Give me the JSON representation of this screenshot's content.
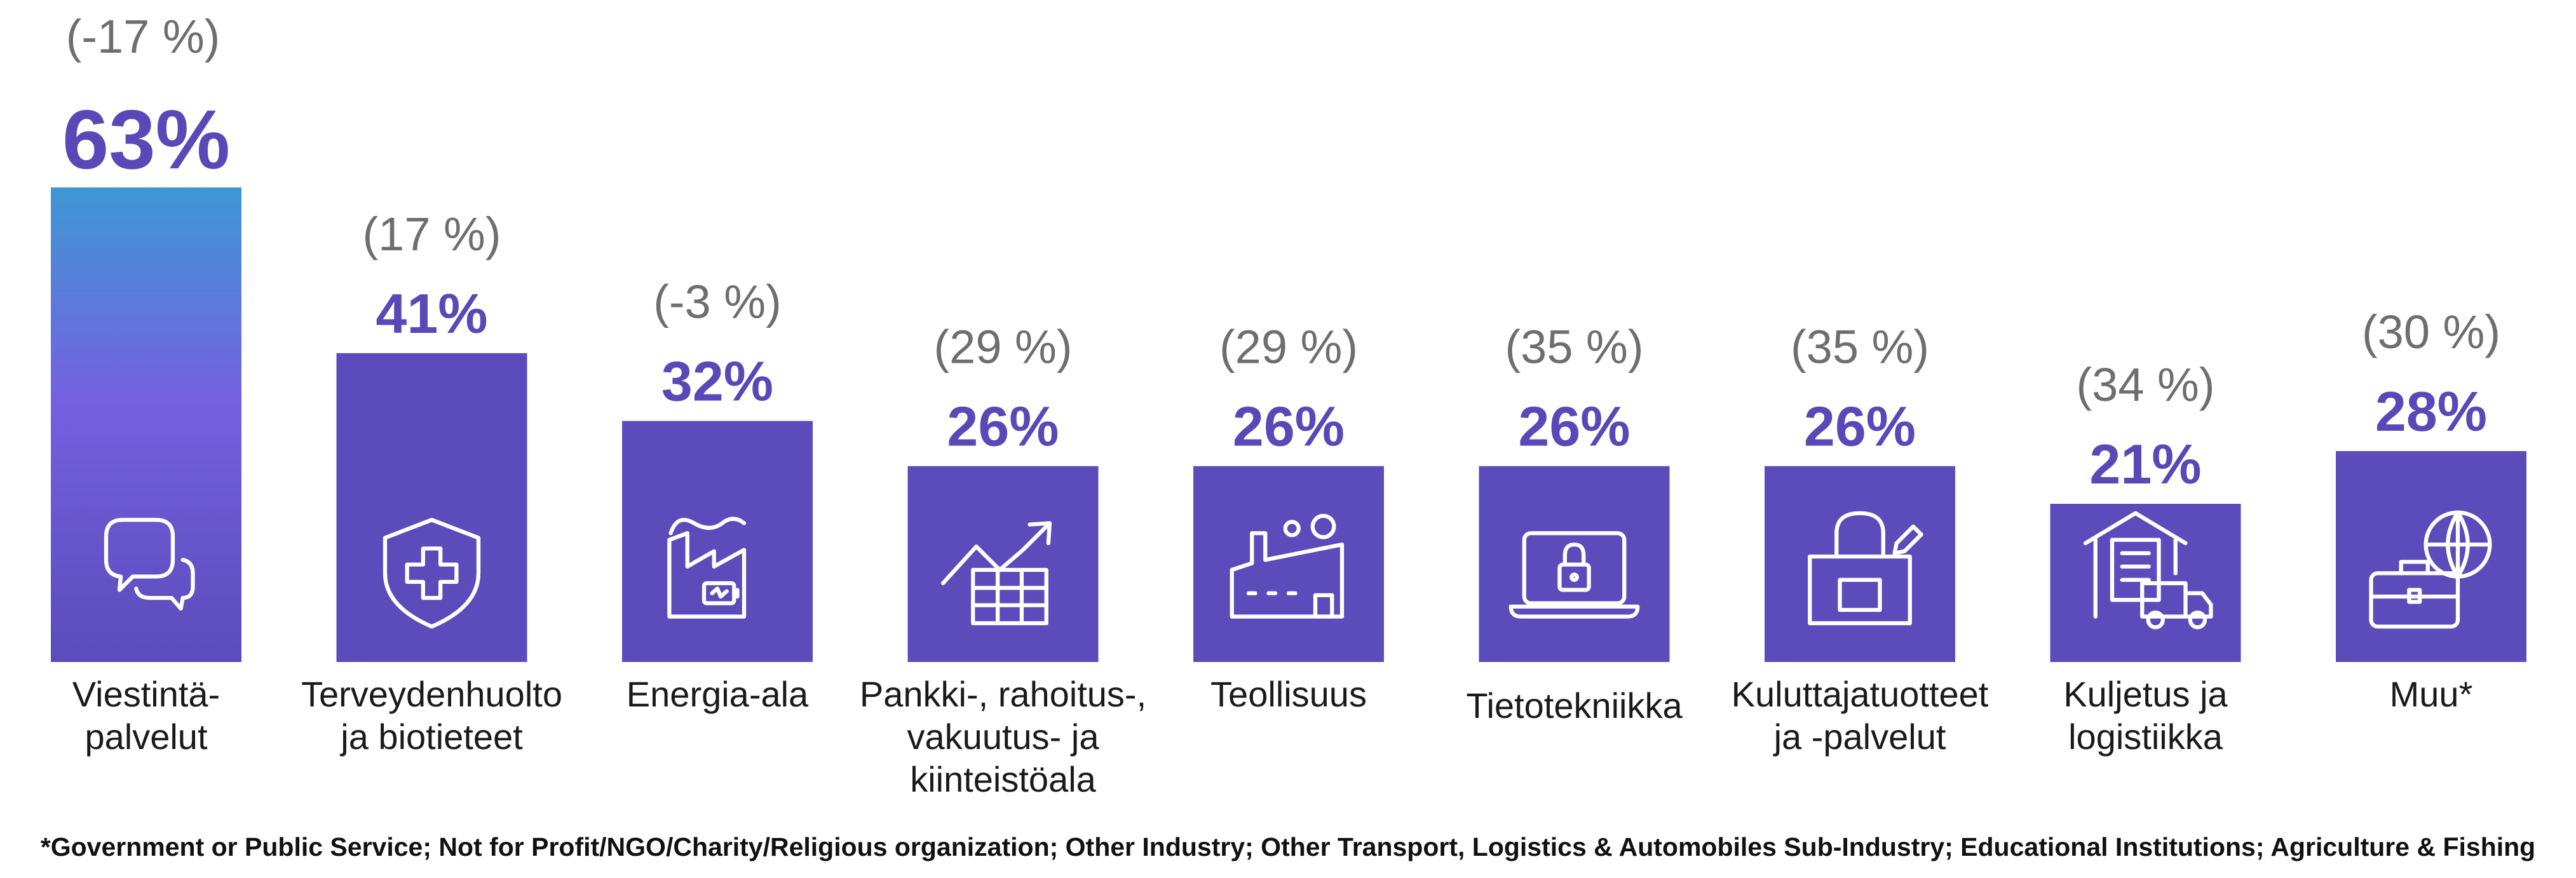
{
  "chart_data": {
    "type": "bar",
    "categories": [
      "Viestintä-\npalvelut",
      "Terveydenhuolto\nja biotieteet",
      "Energia-ala",
      "Pankki-, rahoitus-,\nvakuutus- ja\nkiinteistöala",
      "Teollisuus",
      "Tietotekniikka",
      "Kuluttajatuotteet\nja -palvelut",
      "Kuljetus ja\nlogistiikka",
      "Muu*"
    ],
    "values": [
      63,
      41,
      32,
      26,
      26,
      26,
      26,
      21,
      28
    ],
    "value_labels": [
      "63%",
      "41%",
      "32%",
      "26%",
      "26%",
      "26%",
      "26%",
      "21%",
      "28%"
    ],
    "change_labels": [
      "(-17 %)",
      "(17 %)",
      "(-3 %)",
      "(29 %)",
      "(29 %)",
      "(35 %)",
      "(35 %)",
      "(34 %)",
      "(30 %)"
    ],
    "icons": [
      "chat-bubbles-icon",
      "health-shield-icon",
      "energy-factory-icon",
      "finance-chart-icon",
      "factory-icon",
      "laptop-lock-icon",
      "shopping-bag-icon",
      "warehouse-truck-icon",
      "globe-briefcase-icon"
    ],
    "ylim": [
      0,
      63
    ],
    "colors": {
      "bar": "#5b4bbb",
      "highlight_top": "#3f97d5",
      "highlight_bottom": "#7560e0",
      "value_text": "#5a47b8",
      "change_text": "#6e6e6e"
    }
  },
  "footnote": "*Government or Public Service; Not for Profit/NGO/Charity/Religious organization; Other Industry; Other Transport, Logistics & Automobiles Sub-Industry; Educational Institutions; Agriculture & Fishing"
}
